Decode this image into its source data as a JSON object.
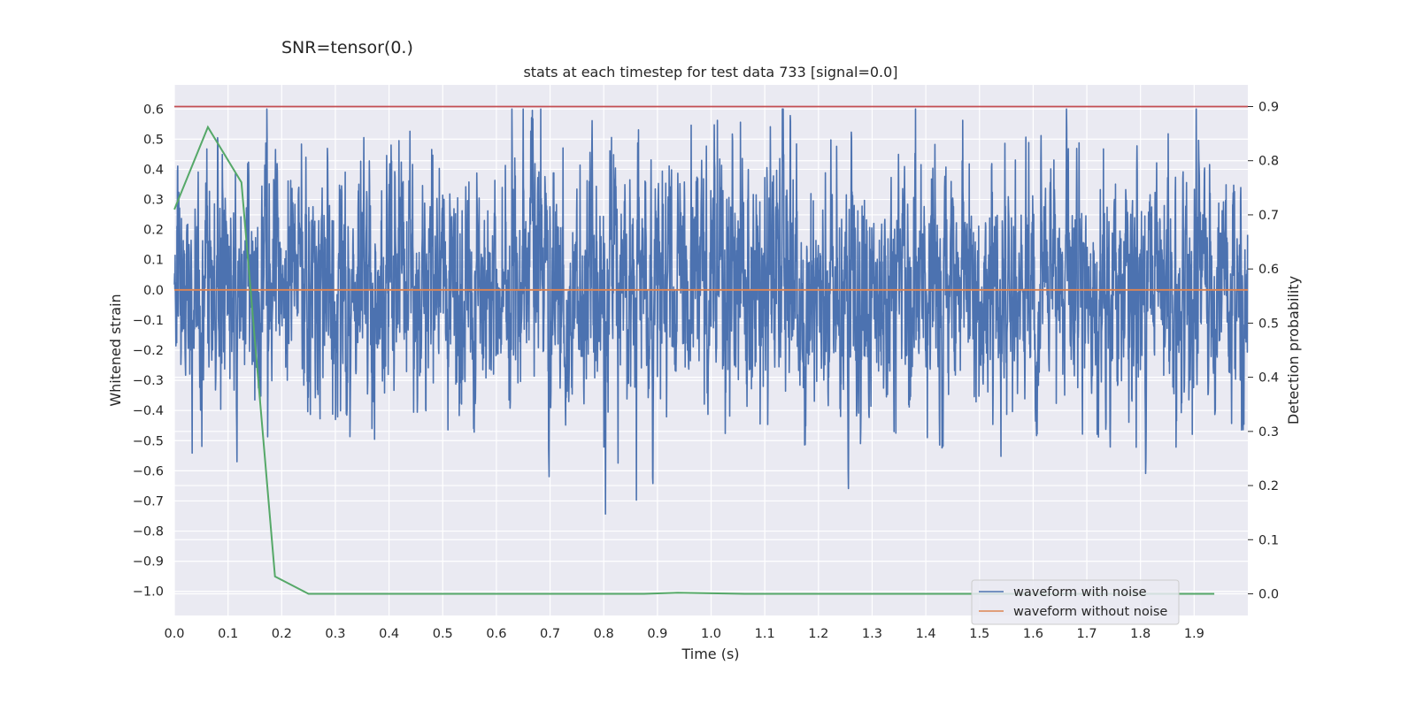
{
  "figure": {
    "suptitle": "SNR=tensor(0.)"
  },
  "chart_data": {
    "type": "line",
    "title": "stats at each timestep for test data 733 [signal=0.0]",
    "xlabel": "Time (s)",
    "ylabel": "Whitened strain",
    "y2label": "Detection probability",
    "xlim": [
      0.0,
      2.0
    ],
    "ylim": [
      -1.08,
      0.68
    ],
    "y2lim": [
      -0.04,
      0.94
    ],
    "grid": true,
    "legend_position": "lower right",
    "x_ticks": [
      0.0,
      0.1,
      0.2,
      0.3,
      0.4,
      0.5,
      0.6,
      0.7,
      0.8,
      0.9,
      1.0,
      1.1,
      1.2,
      1.3,
      1.4,
      1.5,
      1.6,
      1.7,
      1.8,
      1.9
    ],
    "x_tick_labels": [
      "0.0",
      "0.1",
      "0.2",
      "0.3",
      "0.4",
      "0.5",
      "0.6",
      "0.7",
      "0.8",
      "0.9",
      "1.0",
      "1.1",
      "1.2",
      "1.3",
      "1.4",
      "1.5",
      "1.6",
      "1.7",
      "1.8",
      "1.9"
    ],
    "y_ticks": [
      0.6,
      0.5,
      0.4,
      0.3,
      0.2,
      0.1,
      0.0,
      -0.1,
      -0.2,
      -0.3,
      -0.4,
      -0.5,
      -0.6,
      -0.7,
      -0.8,
      -0.9,
      -1.0
    ],
    "y_tick_labels": [
      "0.6",
      "0.5",
      "0.4",
      "0.3",
      "0.2",
      "0.1",
      "0.0",
      "−0.1",
      "−0.2",
      "−0.3",
      "−0.4",
      "−0.5",
      "−0.6",
      "−0.7",
      "−0.8",
      "−0.9",
      "−1.0"
    ],
    "y2_ticks": [
      0.9,
      0.8,
      0.7,
      0.6,
      0.5,
      0.4,
      0.3,
      0.2,
      0.1,
      0.0
    ],
    "y2_tick_labels": [
      "0.9",
      "0.8",
      "0.7",
      "0.6",
      "0.5",
      "0.4",
      "0.3",
      "0.2",
      "0.1",
      "0.0"
    ],
    "series": [
      {
        "name": "waveform with noise",
        "color": "#4c72b0",
        "axis": "left",
        "sample_rate_hz": 2048,
        "noise_sigma": 0.2,
        "noise_clip": [
          -1.0,
          0.6
        ],
        "note_values": "dense whitened noise trace; values vary randomly around 0 within the clip range"
      },
      {
        "name": "waveform without noise",
        "color": "#dd8452",
        "axis": "left",
        "x": [
          0.0,
          2.0
        ],
        "y": [
          0.0,
          0.0
        ]
      },
      {
        "color": "#55a868",
        "axis": "right",
        "x": [
          0.0,
          0.0625,
          0.125,
          0.1875,
          0.25,
          0.3125,
          0.375,
          0.4375,
          0.5,
          0.5625,
          0.625,
          0.6875,
          0.75,
          0.8125,
          0.875,
          0.9375,
          1.0,
          1.0625,
          1.125,
          1.1875,
          1.25,
          1.3125,
          1.375,
          1.4375,
          1.5,
          1.5625,
          1.625,
          1.6875,
          1.75,
          1.8125,
          1.875,
          1.9375
        ],
        "y": [
          0.71,
          0.862,
          0.76,
          0.032,
          0.0,
          0.0,
          0.0,
          0.0,
          0.0,
          0.0,
          0.0,
          0.0,
          0.0,
          0.0,
          0.0,
          0.002,
          0.001,
          0.0,
          0.0,
          0.0,
          0.0,
          0.0,
          0.0,
          0.0,
          0.0,
          0.0,
          0.0,
          0.0,
          0.0,
          0.0,
          0.0,
          0.0
        ]
      },
      {
        "color": "#c44e52",
        "axis": "right",
        "type": "hline",
        "y": 0.9
      }
    ]
  }
}
